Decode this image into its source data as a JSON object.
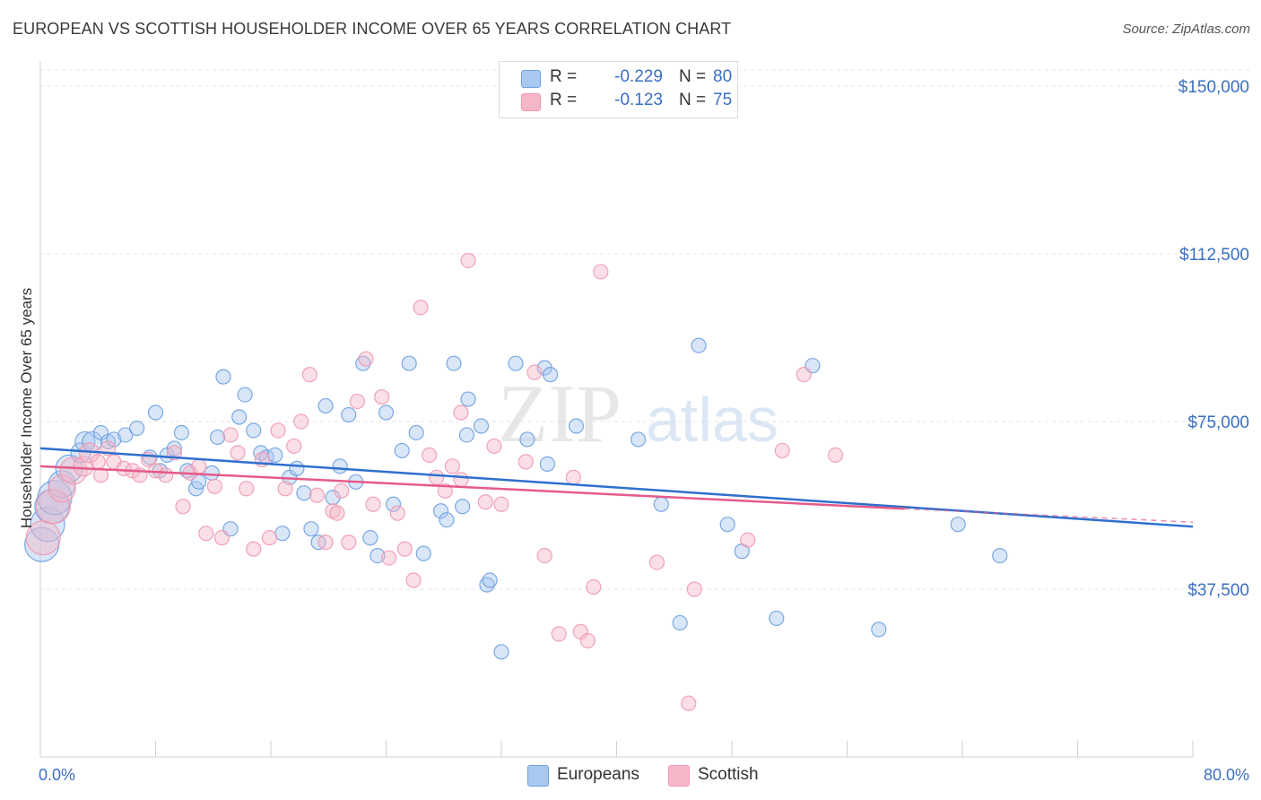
{
  "title": "EUROPEAN VS SCOTTISH HOUSEHOLDER INCOME OVER 65 YEARS CORRELATION CHART",
  "source": "Source: ZipAtlas.com",
  "watermark": {
    "zip": "ZIP",
    "atlas": "atlas"
  },
  "stats": [
    {
      "swatch_color": "#a9c8f0",
      "r_label": "R =",
      "r_value": "-0.229",
      "n_label": "N =",
      "n_value": "80"
    },
    {
      "swatch_color": "#f5b7c8",
      "r_label": "R =",
      "r_value": "-0.123",
      "n_label": "N =",
      "n_value": "75"
    }
  ],
  "legend": [
    {
      "label": "Europeans",
      "color": "#a9c8f0"
    },
    {
      "label": "Scottish",
      "color": "#f5b7c8"
    }
  ],
  "chart_data": {
    "type": "scatter",
    "title": "EUROPEAN VS SCOTTISH HOUSEHOLDER INCOME OVER 65 YEARS CORRELATION CHART",
    "xlabel": "",
    "ylabel": "Householder Income Over 65 years",
    "xlim": [
      0,
      80
    ],
    "ylim": [
      0,
      155000
    ],
    "x_tick_labels": [
      "0.0%",
      "80.0%"
    ],
    "y_ticks": [
      37500,
      75000,
      112500,
      150000
    ],
    "y_tick_labels": [
      "$37,500",
      "$75,000",
      "$112,500",
      "$150,000"
    ],
    "grid": true,
    "series": [
      {
        "name": "Europeans",
        "color": "#6ea0e0",
        "trend": {
          "x": [
            0,
            80
          ],
          "y": [
            69000,
            51500
          ],
          "color": "#2e6fce"
        },
        "points": [
          [
            0.1,
            47500
          ],
          [
            0.5,
            52000
          ],
          [
            0.8,
            56000
          ],
          [
            1.0,
            58000
          ],
          [
            1.5,
            61000
          ],
          [
            2.0,
            64500
          ],
          [
            2.8,
            68000
          ],
          [
            3.1,
            70500
          ],
          [
            3.6,
            70500
          ],
          [
            4.2,
            72500
          ],
          [
            4.7,
            70500
          ],
          [
            5.1,
            71000
          ],
          [
            5.9,
            72000
          ],
          [
            6.7,
            73500
          ],
          [
            7.6,
            67000
          ],
          [
            8.0,
            77000
          ],
          [
            8.3,
            64000
          ],
          [
            8.8,
            67500
          ],
          [
            9.3,
            69000
          ],
          [
            9.8,
            72500
          ],
          [
            10.2,
            64000
          ],
          [
            10.8,
            60000
          ],
          [
            11.0,
            61500
          ],
          [
            11.9,
            63500
          ],
          [
            12.3,
            71500
          ],
          [
            12.7,
            85000
          ],
          [
            13.2,
            51000
          ],
          [
            13.8,
            76000
          ],
          [
            14.2,
            81000
          ],
          [
            14.8,
            73000
          ],
          [
            15.3,
            68000
          ],
          [
            15.7,
            67000
          ],
          [
            16.3,
            67500
          ],
          [
            16.8,
            50000
          ],
          [
            17.3,
            62500
          ],
          [
            17.8,
            64500
          ],
          [
            18.3,
            59000
          ],
          [
            18.8,
            51000
          ],
          [
            19.3,
            48000
          ],
          [
            19.8,
            78500
          ],
          [
            20.3,
            58000
          ],
          [
            20.8,
            65000
          ],
          [
            21.4,
            76500
          ],
          [
            21.9,
            61500
          ],
          [
            22.4,
            88000
          ],
          [
            22.9,
            49000
          ],
          [
            23.4,
            45000
          ],
          [
            24.0,
            77000
          ],
          [
            24.5,
            56500
          ],
          [
            25.1,
            68500
          ],
          [
            25.6,
            88000
          ],
          [
            26.1,
            72500
          ],
          [
            26.6,
            45500
          ],
          [
            27.8,
            55000
          ],
          [
            28.2,
            53000
          ],
          [
            28.7,
            88000
          ],
          [
            29.3,
            56000
          ],
          [
            29.6,
            72000
          ],
          [
            29.7,
            80000
          ],
          [
            30.6,
            74000
          ],
          [
            31.0,
            38500
          ],
          [
            31.2,
            39500
          ],
          [
            32.0,
            23500
          ],
          [
            33.0,
            88000
          ],
          [
            33.8,
            71000
          ],
          [
            35.0,
            87000
          ],
          [
            35.2,
            65500
          ],
          [
            35.4,
            85500
          ],
          [
            37.2,
            74000
          ],
          [
            41.5,
            71000
          ],
          [
            43.1,
            56500
          ],
          [
            44.4,
            30000
          ],
          [
            45.7,
            92000
          ],
          [
            47.7,
            52000
          ],
          [
            48.7,
            46000
          ],
          [
            51.1,
            31000
          ],
          [
            53.6,
            87500
          ],
          [
            58.2,
            28500
          ],
          [
            63.7,
            52000
          ],
          [
            66.6,
            45000
          ]
        ]
      },
      {
        "name": "Scottish",
        "color": "#f099b3",
        "trend": {
          "x": [
            0,
            60
          ],
          "y": [
            65000,
            55500
          ],
          "color": "#e55a8a",
          "dashed_extension": {
            "x": [
              60,
              80
            ],
            "y": [
              55500,
              52500
            ]
          }
        },
        "points": [
          [
            0.2,
            49000
          ],
          [
            0.9,
            56000
          ],
          [
            1.5,
            60000
          ],
          [
            2.3,
            64000
          ],
          [
            3.0,
            65000
          ],
          [
            3.4,
            68000
          ],
          [
            4.0,
            66000
          ],
          [
            4.7,
            69000
          ],
          [
            5.1,
            66000
          ],
          [
            5.8,
            64500
          ],
          [
            6.4,
            64000
          ],
          [
            6.9,
            63000
          ],
          [
            7.5,
            66500
          ],
          [
            8.0,
            64000
          ],
          [
            8.7,
            63000
          ],
          [
            9.3,
            68000
          ],
          [
            9.9,
            56000
          ],
          [
            10.4,
            63500
          ],
          [
            11.0,
            65000
          ],
          [
            11.5,
            50000
          ],
          [
            12.1,
            60500
          ],
          [
            12.6,
            49000
          ],
          [
            13.2,
            72000
          ],
          [
            13.7,
            68000
          ],
          [
            14.3,
            60000
          ],
          [
            14.8,
            46500
          ],
          [
            15.4,
            66500
          ],
          [
            15.9,
            49000
          ],
          [
            16.5,
            73000
          ],
          [
            17.0,
            60000
          ],
          [
            17.6,
            69500
          ],
          [
            18.1,
            75000
          ],
          [
            18.7,
            85500
          ],
          [
            19.2,
            58500
          ],
          [
            19.8,
            48000
          ],
          [
            20.3,
            55000
          ],
          [
            20.9,
            59500
          ],
          [
            21.4,
            48000
          ],
          [
            22.0,
            79500
          ],
          [
            22.6,
            89000
          ],
          [
            23.1,
            56500
          ],
          [
            23.7,
            80500
          ],
          [
            24.2,
            44500
          ],
          [
            24.8,
            54500
          ],
          [
            25.3,
            46500
          ],
          [
            25.9,
            39500
          ],
          [
            26.4,
            100500
          ],
          [
            27.0,
            67500
          ],
          [
            27.5,
            62500
          ],
          [
            28.1,
            59500
          ],
          [
            28.6,
            65000
          ],
          [
            29.2,
            77000
          ],
          [
            29.7,
            111000
          ],
          [
            30.9,
            57000
          ],
          [
            31.5,
            69500
          ],
          [
            32.0,
            56500
          ],
          [
            33.7,
            66000
          ],
          [
            34.3,
            86000
          ],
          [
            35.0,
            45000
          ],
          [
            36.0,
            27500
          ],
          [
            37.0,
            62500
          ],
          [
            37.5,
            28000
          ],
          [
            38.0,
            26000
          ],
          [
            38.4,
            38000
          ],
          [
            38.9,
            108500
          ],
          [
            42.8,
            43500
          ],
          [
            45.4,
            37500
          ],
          [
            49.1,
            48500
          ],
          [
            51.5,
            68500
          ],
          [
            53.0,
            85500
          ],
          [
            55.2,
            67500
          ],
          [
            45.0,
            12000
          ],
          [
            29.2,
            62000
          ],
          [
            20.6,
            54500
          ],
          [
            4.2,
            63000
          ]
        ]
      }
    ]
  }
}
